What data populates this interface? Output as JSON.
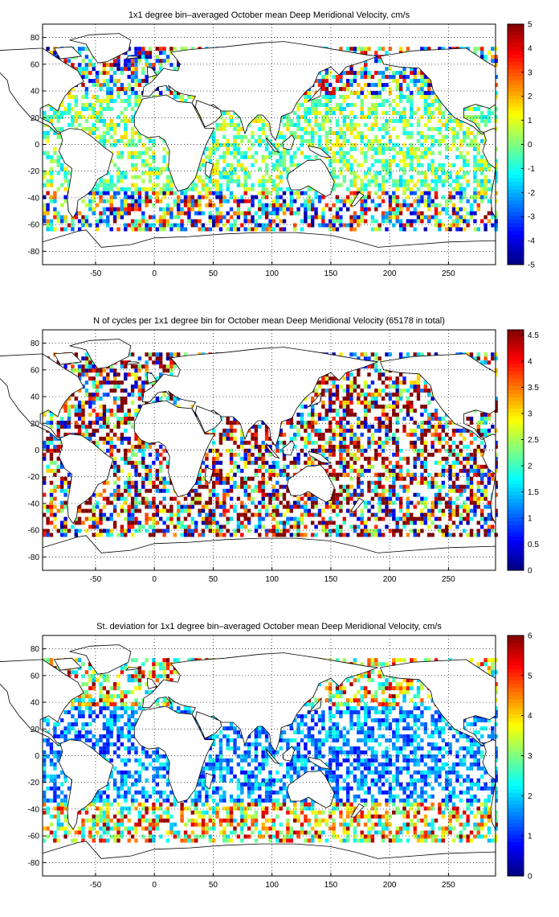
{
  "panels": [
    {
      "id": "mean",
      "title": "1x1 degree bin–averaged October mean Deep Meridional Velocity, cm/s",
      "colorbar_ticks": [
        "5",
        "4",
        "3",
        "2",
        "1",
        "0",
        "-1",
        "-2",
        "-3",
        "-4",
        "-5"
      ]
    },
    {
      "id": "ncycles",
      "title": "N of cycles per 1x1 degree bin for October mean Deep Meridional Velocity (65178 in total)",
      "colorbar_ticks": [
        "4.5",
        "4",
        "3.5",
        "3",
        "2.5",
        "2",
        "1.5",
        "1",
        "0.5",
        "0"
      ]
    },
    {
      "id": "stdev",
      "title": "St. deviation for 1x1 degree bin–averaged October mean Deep Meridional Velocity, cm/s",
      "colorbar_ticks": [
        "6",
        "5",
        "4",
        "3",
        "2",
        "1",
        "0"
      ]
    }
  ],
  "chart_data": [
    {
      "type": "heatmap",
      "title": "1x1 degree bin–averaged October mean Deep Meridional Velocity, cm/s",
      "x_ticks": [
        -50,
        0,
        50,
        100,
        150,
        200,
        250
      ],
      "y_ticks": [
        80,
        60,
        40,
        20,
        0,
        -20,
        -40,
        -60,
        -80
      ],
      "xlim": [
        -95,
        290
      ],
      "ylim": [
        -90,
        90
      ],
      "clim": [
        -5,
        5
      ],
      "colormap": "jet",
      "grid": true
    },
    {
      "type": "heatmap",
      "title": "N of cycles per 1x1 degree bin for October mean Deep Meridional Velocity (65178 in total)",
      "x_ticks": [
        -50,
        0,
        50,
        100,
        150,
        200,
        250
      ],
      "y_ticks": [
        80,
        60,
        40,
        20,
        0,
        -20,
        -40,
        -60,
        -80
      ],
      "xlim": [
        -95,
        290
      ],
      "ylim": [
        -90,
        90
      ],
      "clim": [
        0,
        4.6
      ],
      "colormap": "jet",
      "grid": true
    },
    {
      "type": "heatmap",
      "title": "St. deviation for 1x1 degree bin–averaged October mean Deep Meridional Velocity, cm/s",
      "x_ticks": [
        -50,
        0,
        50,
        100,
        150,
        200,
        250
      ],
      "y_ticks": [
        80,
        60,
        40,
        20,
        0,
        -20,
        -40,
        -60,
        -80
      ],
      "xlim": [
        -95,
        290
      ],
      "ylim": [
        -90,
        90
      ],
      "clim": [
        0,
        6
      ],
      "colormap": "jet",
      "grid": true
    }
  ]
}
